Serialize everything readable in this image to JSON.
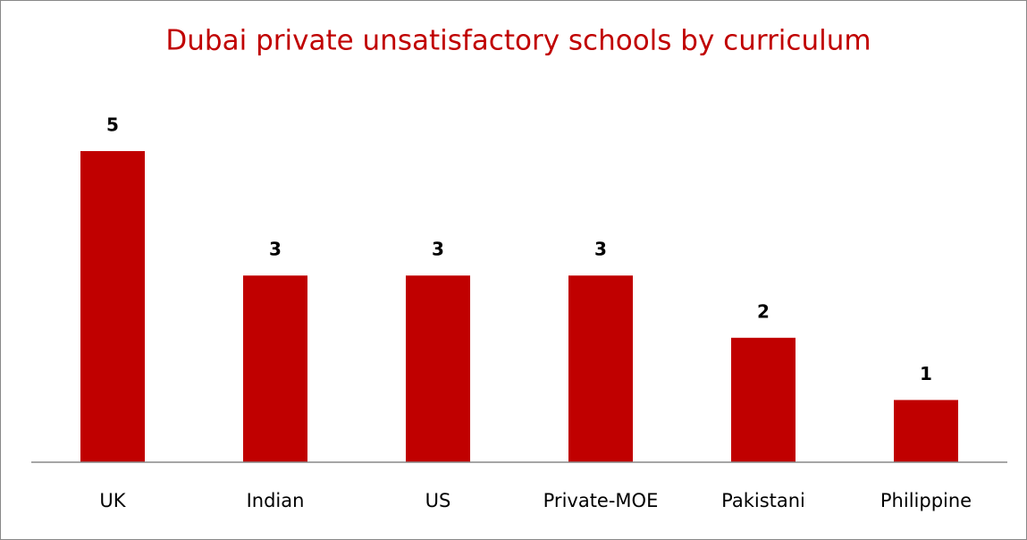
{
  "chart_data": {
    "type": "bar",
    "title": "Dubai private unsatisfactory schools by curriculum",
    "categories": [
      "UK",
      "Indian",
      "US",
      "Private-MOE",
      "Pakistani",
      "Philippine"
    ],
    "values": [
      5,
      3,
      3,
      3,
      2,
      1
    ],
    "color": "#c00000",
    "ylim": [
      0,
      5
    ]
  }
}
